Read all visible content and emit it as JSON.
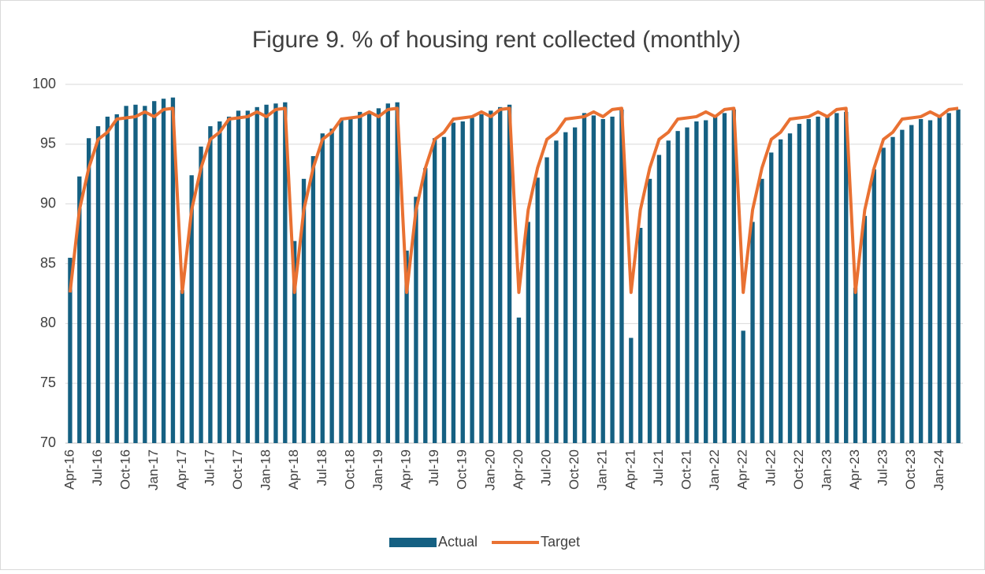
{
  "chart_data": {
    "type": "bar_line",
    "title": "Figure 9. % of housing rent collected (monthly)",
    "categories": [
      "Apr-16",
      null,
      null,
      "Jul-16",
      null,
      null,
      "Oct-16",
      null,
      null,
      "Jan-17",
      null,
      null,
      "Apr-17",
      null,
      null,
      "Jul-17",
      null,
      null,
      "Oct-17",
      null,
      null,
      "Jan-18",
      null,
      null,
      "Apr-18",
      null,
      null,
      "Jul-18",
      null,
      null,
      "Oct-18",
      null,
      null,
      "Jan-19",
      null,
      null,
      "Apr-19",
      null,
      null,
      "Jul-19",
      null,
      null,
      "Oct-19",
      null,
      null,
      "Jan-20",
      null,
      null,
      "Apr-20",
      null,
      null,
      "Jul-20",
      null,
      null,
      "Oct-20",
      null,
      null,
      "Jan-21",
      null,
      null,
      "Apr-21",
      null,
      null,
      "Jul-21",
      null,
      null,
      "Oct-21",
      null,
      null,
      "Jan-22",
      null,
      null,
      "Apr-22",
      null,
      null,
      "Jul-22",
      null,
      null,
      "Oct-22",
      null,
      null,
      "Jan-23",
      null,
      null,
      "Apr-23",
      null,
      null,
      "Jul-23",
      null,
      null,
      "Oct-23",
      null,
      null,
      "Jan-24",
      null,
      null
    ],
    "series": [
      {
        "name": "Actual",
        "type": "bar",
        "color": "#156082",
        "values": [
          85.5,
          92.3,
          95.5,
          96.5,
          97.3,
          97.5,
          98.2,
          98.3,
          98.2,
          98.6,
          98.8,
          98.9,
          82.8,
          92.4,
          94.8,
          96.5,
          96.9,
          97.3,
          97.8,
          97.8,
          98.1,
          98.3,
          98.4,
          98.5,
          86.9,
          92.1,
          94.0,
          95.9,
          96.3,
          97.0,
          97.3,
          97.7,
          97.7,
          98.0,
          98.4,
          98.5,
          86.1,
          90.6,
          93.0,
          95.5,
          95.6,
          96.8,
          96.9,
          97.2,
          97.5,
          97.8,
          98.1,
          98.3,
          80.5,
          88.5,
          92.2,
          93.9,
          95.3,
          96.0,
          96.4,
          97.6,
          97.4,
          97.1,
          97.3,
          97.9,
          78.8,
          88.0,
          92.1,
          94.1,
          95.3,
          96.1,
          96.4,
          96.9,
          97.0,
          97.3,
          97.6,
          97.9,
          79.4,
          88.5,
          92.1,
          94.3,
          95.4,
          95.9,
          96.7,
          97.1,
          97.3,
          97.3,
          97.6,
          97.7,
          83.0,
          89.0,
          92.9,
          94.7,
          95.6,
          96.2,
          96.6,
          97.1,
          97.0,
          97.3,
          97.6,
          97.9
        ]
      },
      {
        "name": "Target",
        "type": "line",
        "color": "#e97132",
        "values": [
          82.6,
          89.5,
          93.0,
          95.4,
          96.0,
          97.1,
          97.2,
          97.3,
          97.7,
          97.3,
          97.9,
          98.0,
          82.6,
          89.5,
          93.0,
          95.4,
          96.0,
          97.1,
          97.2,
          97.3,
          97.7,
          97.3,
          97.9,
          98.0,
          82.6,
          89.5,
          93.0,
          95.4,
          96.0,
          97.1,
          97.2,
          97.3,
          97.7,
          97.3,
          97.9,
          98.0,
          82.6,
          89.5,
          93.0,
          95.4,
          96.0,
          97.1,
          97.2,
          97.3,
          97.7,
          97.3,
          97.9,
          98.0,
          82.6,
          89.5,
          93.0,
          95.4,
          96.0,
          97.1,
          97.2,
          97.3,
          97.7,
          97.3,
          97.9,
          98.0,
          82.6,
          89.5,
          93.0,
          95.4,
          96.0,
          97.1,
          97.2,
          97.3,
          97.7,
          97.3,
          97.9,
          98.0,
          82.6,
          89.5,
          93.0,
          95.4,
          96.0,
          97.1,
          97.2,
          97.3,
          97.7,
          97.3,
          97.9,
          98.0,
          82.6,
          89.5,
          93.0,
          95.4,
          96.0,
          97.1,
          97.2,
          97.3,
          97.7,
          97.3,
          97.9,
          98.0
        ]
      }
    ],
    "ylim": [
      70,
      100
    ],
    "yticks": [
      70,
      75,
      80,
      85,
      90,
      95,
      100
    ],
    "grid": true,
    "legend": "bottom"
  }
}
